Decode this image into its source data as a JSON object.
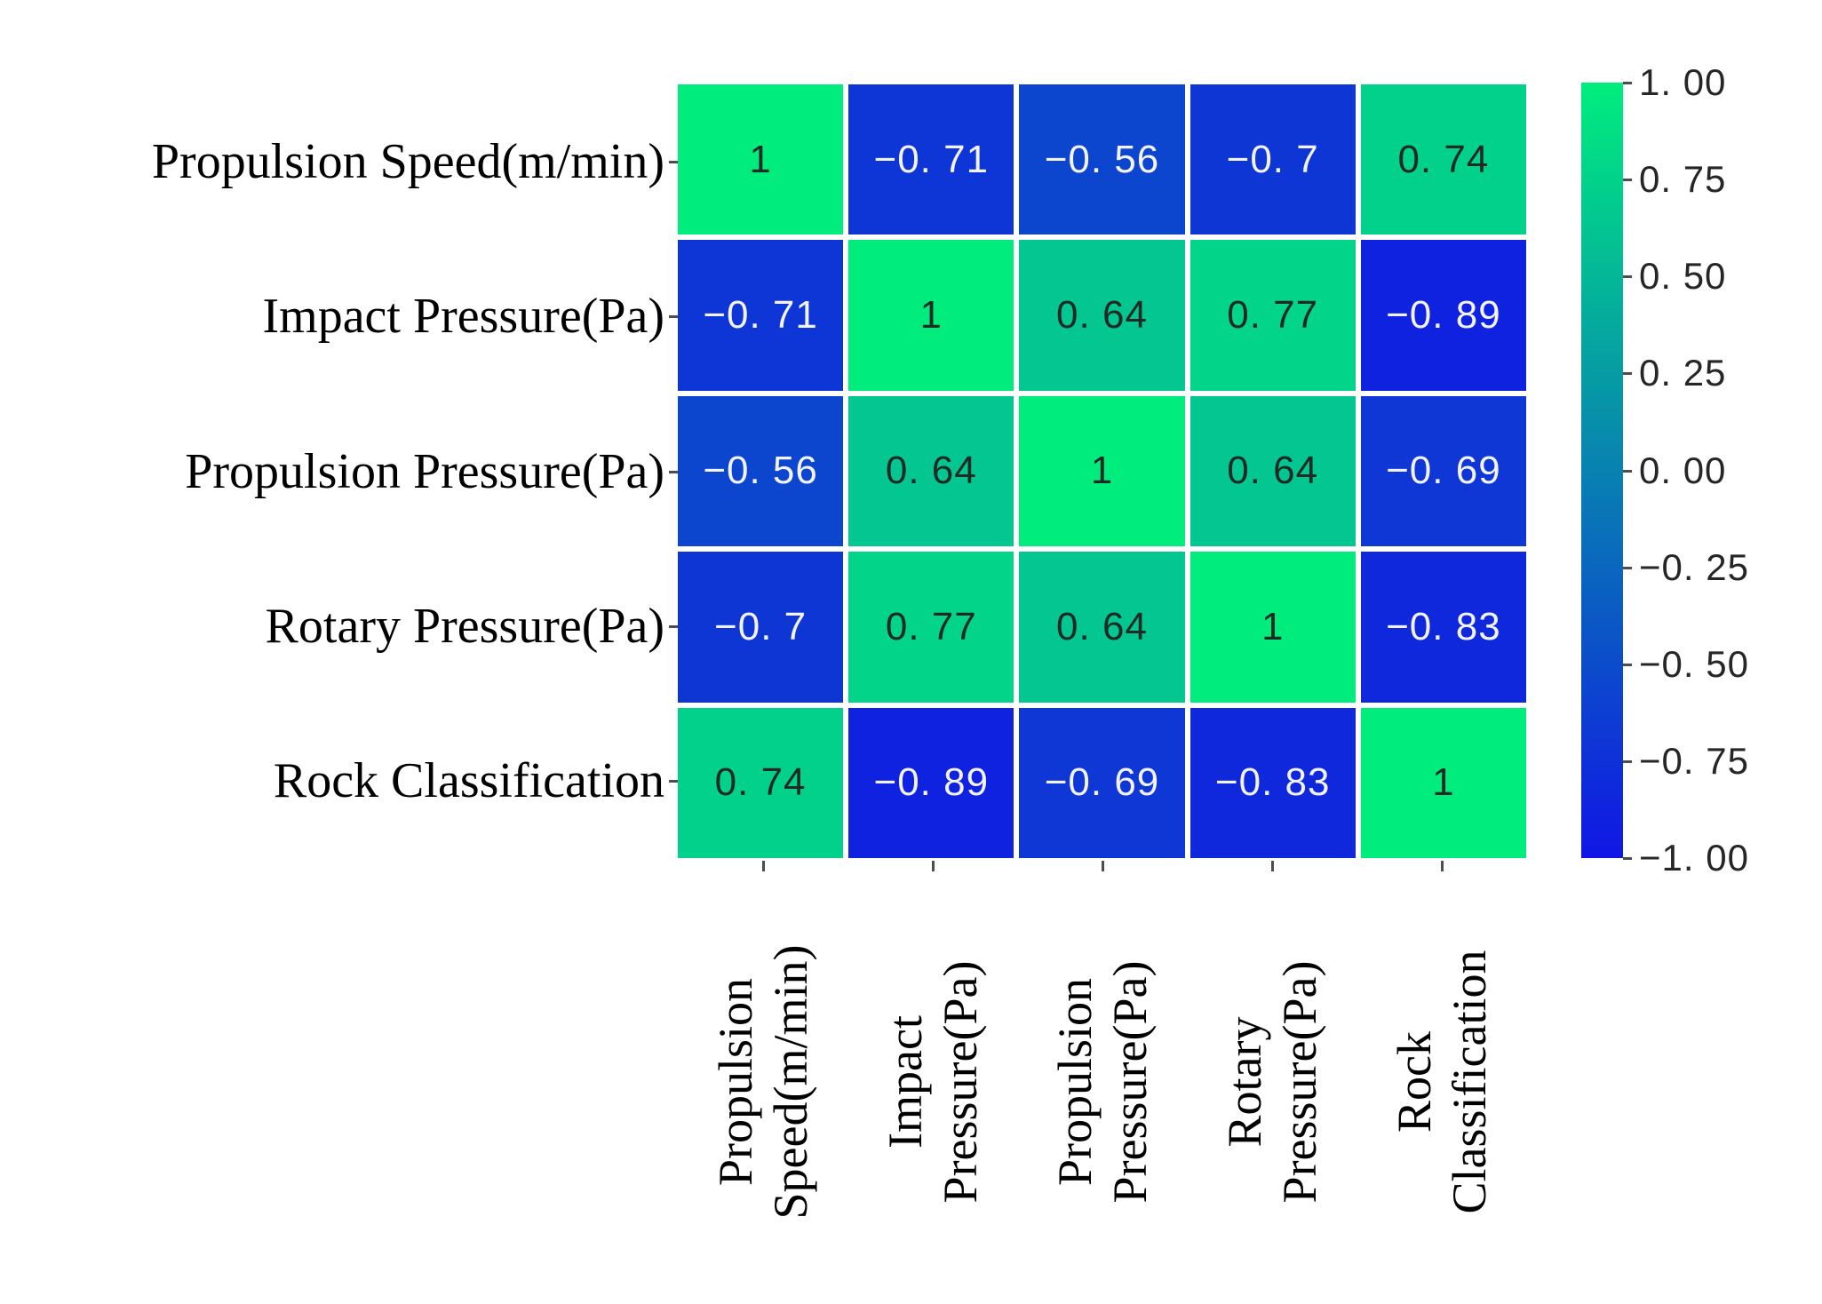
{
  "figure": {
    "background": "#ffffff"
  },
  "chart_data": {
    "type": "heatmap",
    "title": "",
    "xlabel": "",
    "ylabel": "",
    "grid": false,
    "legend_position": "colorbar-right",
    "value_range": [
      -1,
      1
    ],
    "variables": [
      "Propulsion Speed(m/min)",
      "Impact Pressure(Pa)",
      "Propulsion Pressure(Pa)",
      "Rotary Pressure(Pa)",
      "Rock Classification"
    ],
    "row_labels": [
      "Propulsion Speed(m/min)",
      "Impact Pressure(Pa)",
      "Propulsion Pressure(Pa)",
      "Rotary Pressure(Pa)",
      "Rock Classification"
    ],
    "column_labels_lines": [
      [
        "Propulsion",
        "Speed(m/min)"
      ],
      [
        "Impact",
        "Pressure(Pa)"
      ],
      [
        "Propulsion",
        "Pressure(Pa)"
      ],
      [
        "Rotary",
        "Pressure(Pa)"
      ],
      [
        "Rock",
        "Classification"
      ]
    ],
    "matrix": [
      [
        1,
        -0.71,
        -0.56,
        -0.7,
        0.74
      ],
      [
        -0.71,
        1,
        0.64,
        0.77,
        -0.89
      ],
      [
        -0.56,
        0.64,
        1,
        0.64,
        -0.69
      ],
      [
        -0.7,
        0.77,
        0.64,
        1,
        -0.83
      ],
      [
        0.74,
        -0.89,
        -0.69,
        -0.83,
        1
      ]
    ],
    "cell_labels": [
      [
        "1",
        "−0. 71",
        "−0. 56",
        "−0. 7",
        "0. 74"
      ],
      [
        "−0. 71",
        "1",
        "0. 64",
        "0. 77",
        "−0. 89"
      ],
      [
        "−0. 56",
        "0. 64",
        "1",
        "0. 64",
        "−0. 69"
      ],
      [
        "−0. 7",
        "0. 77",
        "0. 64",
        "1",
        "−0. 83"
      ],
      [
        "0. 74",
        "−0. 89",
        "−0. 69",
        "−0. 83",
        "1"
      ]
    ],
    "colorbar": {
      "tick_labels": [
        "1. 00",
        "0. 75",
        "0. 50",
        "0. 25",
        "0. 00",
        "−0. 25",
        "−0. 50",
        "−0. 75",
        "−1. 00"
      ],
      "tick_values": [
        1,
        0.75,
        0.5,
        0.25,
        0,
        -0.25,
        -0.5,
        -0.75,
        -1
      ],
      "colormap": "winter",
      "top_color": "#00ed7d",
      "bottom_color": "#1016e5"
    },
    "colors": {
      "cell_text_positive": "#1f2a24",
      "cell_text_negative": "#f2f3ff",
      "cell_gap": "#ffffff",
      "axis_tick": "#4d4d4d",
      "axis_label": "#000000",
      "colorbar_label": "#262626"
    }
  }
}
